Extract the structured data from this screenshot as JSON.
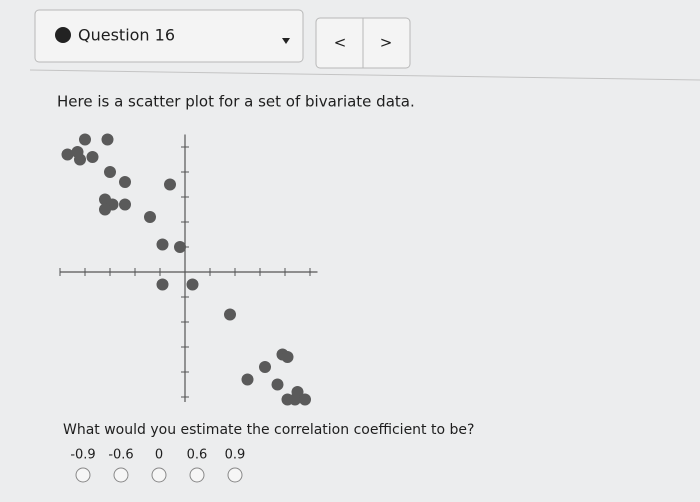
{
  "header": {
    "question": "Question 16",
    "prev": "<",
    "next": ">"
  },
  "prompt": "Here is a scatter plot for a set of bivariate data.",
  "chart_data": {
    "type": "scatter",
    "color": "#5a5a5a",
    "x": [
      -4,
      -3.1,
      -4.7,
      -4.3,
      -4.2,
      -3.7,
      -3,
      -2.4,
      -0.6,
      -3.2,
      -2.9,
      -2.4,
      -3.2,
      -1.4,
      -0.9,
      -0.2,
      -0.9,
      0.3,
      1.8,
      3.9,
      4.1,
      3.2,
      2.5,
      3.7,
      4.5,
      4.1,
      4.4,
      4.8
    ],
    "values": [
      5.3,
      5.3,
      4.7,
      4.8,
      4.5,
      4.6,
      4,
      3.6,
      3.5,
      2.9,
      2.7,
      2.7,
      2.5,
      2.2,
      1.1,
      1,
      -0.5,
      -0.5,
      -1.7,
      -3.3,
      -3.4,
      -3.8,
      -4.3,
      -4.5,
      -4.8,
      -5.1,
      -5.1,
      -5.1
    ],
    "xlim": [
      -5,
      5.3
    ],
    "ylim": [
      -5.2,
      5.5
    ],
    "xticks": [
      -5,
      -4,
      -3,
      -2,
      -1,
      1,
      2,
      3,
      4,
      5
    ],
    "yticks": [
      -5,
      -4,
      -3,
      -2,
      -1,
      1,
      2,
      3,
      4,
      5
    ]
  },
  "question": "What would you estimate the correlation coefficient to be?",
  "choices": [
    "-0.9",
    "-0.6",
    "0",
    "0.6",
    "0.9"
  ]
}
